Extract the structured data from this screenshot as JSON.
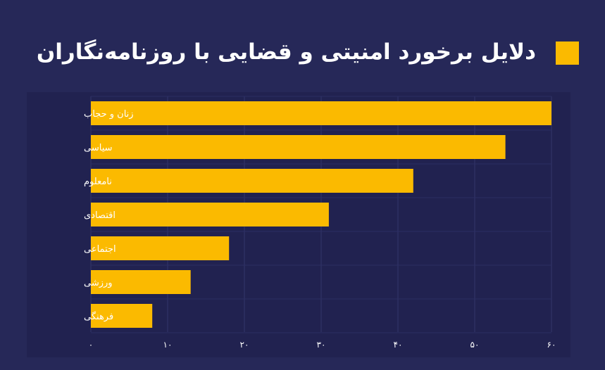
{
  "title": "دلایل برخورد امنیتی و قضایی با روزنامه‌نگاران",
  "colors": {
    "background": "#262858",
    "panel": "#212250",
    "bar": "#fbba00",
    "accent": "#fbba00",
    "text": "#ffffff"
  },
  "chart_data": {
    "type": "bar",
    "orientation": "horizontal",
    "title": "دلایل برخورد امنیتی و قضایی با روزنامه‌نگاران",
    "categories": [
      "زنان و حجاب",
      "سیاسی",
      "نامعلوم",
      "اقتصادی",
      "اجتماعی",
      "ورزشی",
      "فرهنگی"
    ],
    "values": [
      60,
      54,
      42,
      31,
      18,
      13,
      8
    ],
    "xlim": [
      0,
      60
    ],
    "xticks": [
      0,
      10,
      20,
      30,
      40,
      50,
      60
    ],
    "xtick_labels": [
      "۰",
      "۱۰",
      "۲۰",
      "۳۰",
      "۴۰",
      "۵۰",
      "۶۰"
    ],
    "xlabel": "",
    "ylabel": "",
    "grid": true,
    "legend": "none"
  }
}
